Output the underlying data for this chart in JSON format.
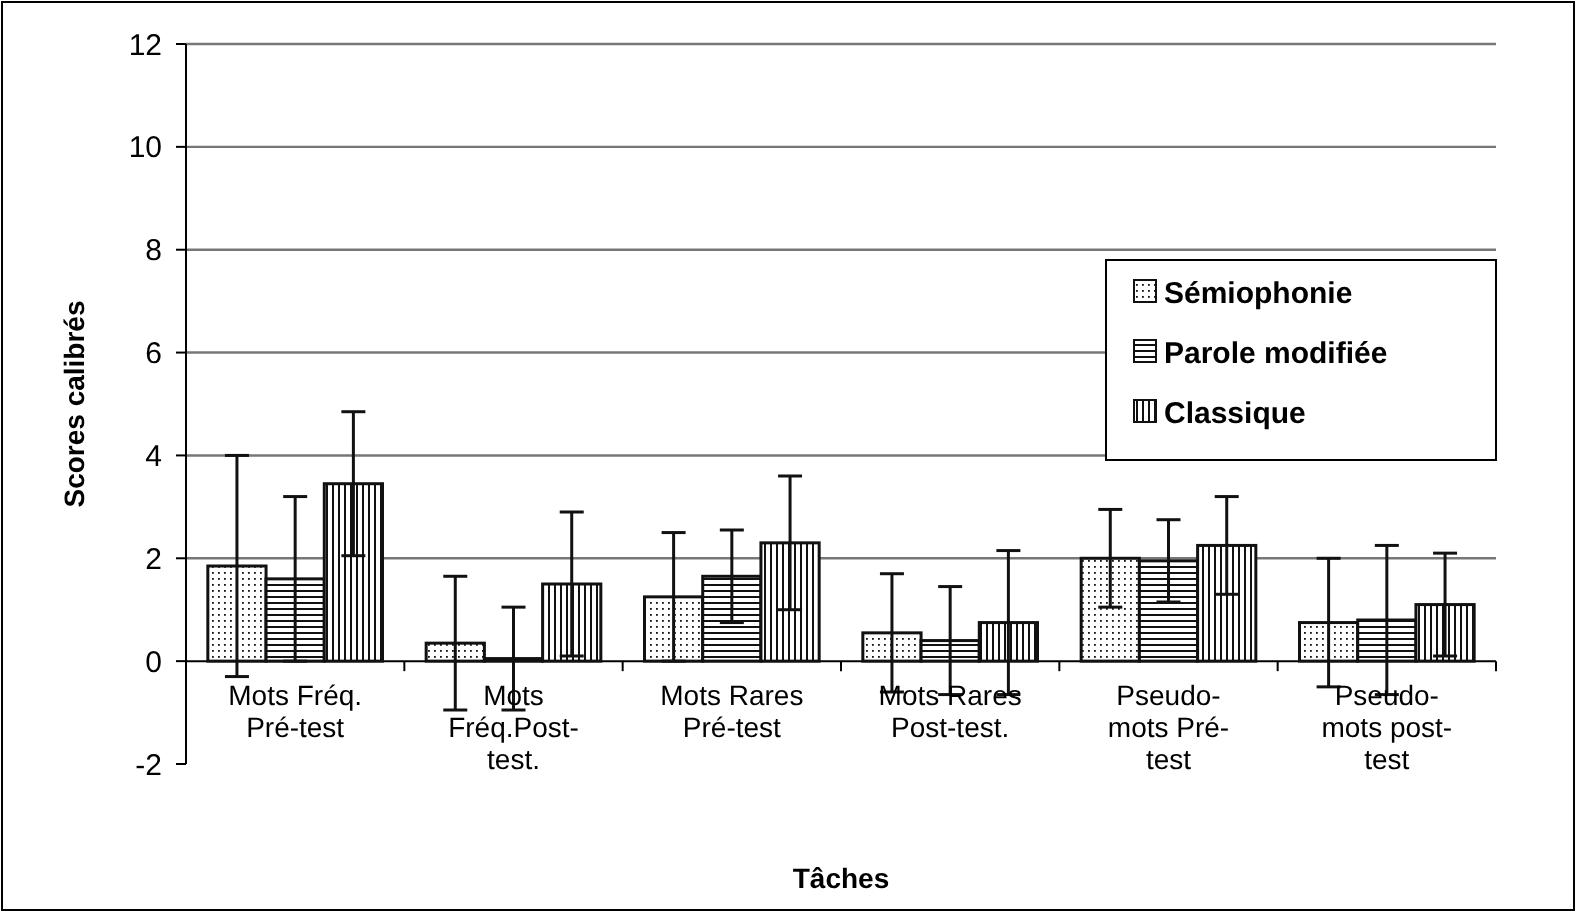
{
  "chart_data": {
    "type": "bar",
    "xlabel": "Tâches",
    "ylabel": "Scores calibrés",
    "categories": [
      "Mots Fréq. Pré-test",
      "Mots Fréq.Post-test.",
      "Mots Rares Pré-test",
      "Mots Rares Post-test.",
      "Pseudo-mots Pré-test",
      "Pseudo-mots post-test"
    ],
    "series": [
      {
        "name": "Sémiophonie",
        "color": "#111111",
        "values": [
          1.85,
          0.35,
          1.25,
          0.55,
          2.0,
          0.75
        ],
        "errors": [
          2.15,
          1.3,
          1.25,
          1.15,
          0.95,
          1.25
        ]
      },
      {
        "name": "Parole modifiée",
        "color": "#111111",
        "values": [
          1.6,
          0.05,
          1.65,
          0.4,
          1.95,
          0.8
        ],
        "errors": [
          1.6,
          1.0,
          0.9,
          1.05,
          0.8,
          1.45
        ]
      },
      {
        "name": "Classique",
        "color": "#111111",
        "values": [
          3.45,
          1.5,
          2.3,
          0.75,
          2.25,
          1.1
        ],
        "errors": [
          1.4,
          1.4,
          1.3,
          1.4,
          0.95,
          1.0
        ]
      }
    ],
    "ylim": [
      -2,
      12
    ],
    "yticks": [
      -2,
      0,
      2,
      4,
      6,
      8,
      10,
      12
    ],
    "grid": "y",
    "legend": "top right"
  }
}
